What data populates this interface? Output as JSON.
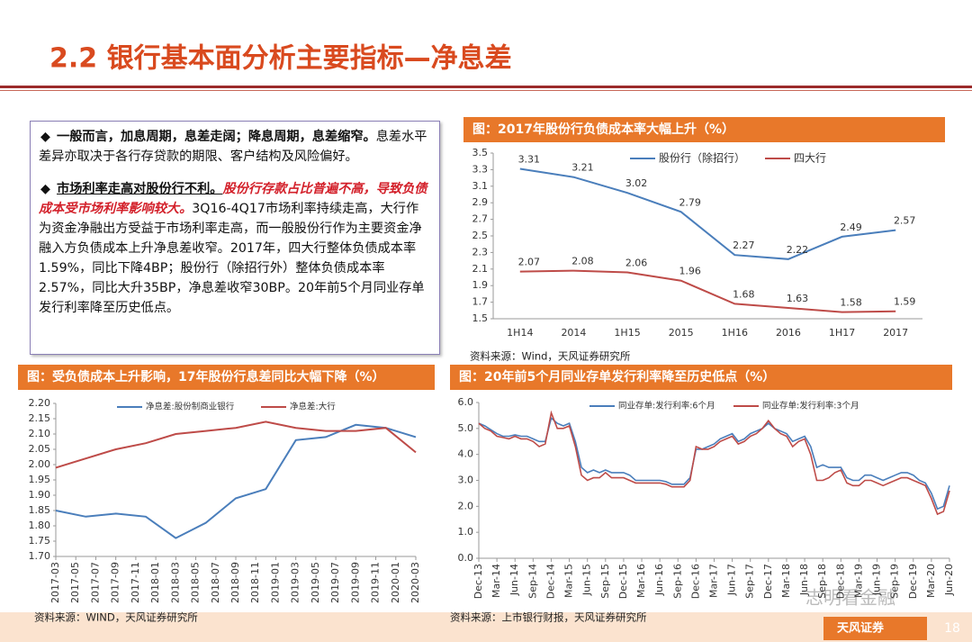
{
  "header": {
    "title": "2.2 银行基本面分析主要指标—净息差"
  },
  "text": {
    "bullets": [
      {
        "bold": "一般而言，加息周期，息差走阔；降息周期，息差缩窄。",
        "normal": "息差水平差异亦取决于各行存贷款的期限、客户结构及风险偏好。"
      },
      {
        "bold": "市场利率走高对股份行不利。",
        "emphasis": "股份行存款占比普遍不高，导致负债成本受市场利率影响较大。",
        "normal": "3Q16-4Q17市场利率持续走高，大行作为资金净融出方受益于市场利率走高，而一般股份行作为主要资金净融入方负债成本上升净息差收窄。2017年，四大行整体负债成本率1.59%，同比下降4BP；股份行（除招行外）整体负债成本率2.57%，同比大升35BP，净息差收窄30BP。20年前5个月同业存单发行利率降至历史低点。"
      }
    ]
  },
  "chart_data": [
    {
      "type": "line",
      "title": "图：2017年股份行负债成本率大幅上升（%）",
      "source": "资料来源：Wind，天风证券研究所",
      "categories": [
        "1H14",
        "2014",
        "1H15",
        "2015",
        "1H16",
        "2016",
        "1H17",
        "2017"
      ],
      "series": [
        {
          "name": "股份行（除招行）",
          "color": "#4a7ebb",
          "values": [
            3.31,
            3.21,
            3.02,
            2.79,
            2.27,
            2.22,
            2.49,
            2.57
          ]
        },
        {
          "name": "四大行",
          "color": "#be4b48",
          "values": [
            2.07,
            2.08,
            2.06,
            1.96,
            1.68,
            1.63,
            1.58,
            1.59
          ]
        }
      ],
      "ylim": [
        1.5,
        3.5
      ],
      "yticks": [
        1.5,
        1.7,
        1.9,
        2.1,
        2.3,
        2.5,
        2.7,
        2.9,
        3.1,
        3.3,
        3.5
      ],
      "grid": false,
      "legend": "top",
      "data_labels": true
    },
    {
      "type": "line",
      "title": "图：受负债成本上升影响，17年股份行息差同比大幅下降（%）",
      "source": "资料来源：WIND，天风证券研究所",
      "x": [
        "2017-03",
        "2017-06",
        "2017-09",
        "2017-12",
        "2018-03",
        "2018-06",
        "2018-09",
        "2018-12",
        "2019-03",
        "2019-06",
        "2019-09",
        "2019-12",
        "2020-03"
      ],
      "xticks": [
        "2017-03",
        "2017-05",
        "2017-07",
        "2017-09",
        "2017-11",
        "2018-01",
        "2018-03",
        "2018-05",
        "2018-07",
        "2018-09",
        "2018-11",
        "2019-01",
        "2019-03",
        "2019-05",
        "2019-07",
        "2019-09",
        "2019-11",
        "2020-01",
        "2020-03"
      ],
      "series": [
        {
          "name": "净息差:股份制商业银行",
          "color": "#4a7ebb",
          "values": [
            1.85,
            1.83,
            1.84,
            1.83,
            1.76,
            1.81,
            1.89,
            1.92,
            2.08,
            2.09,
            2.13,
            2.12,
            2.09
          ]
        },
        {
          "name": "净息差:大行",
          "color": "#be4b48",
          "values": [
            1.99,
            2.02,
            2.05,
            2.07,
            2.1,
            2.11,
            2.12,
            2.14,
            2.12,
            2.11,
            2.11,
            2.12,
            2.04
          ]
        }
      ],
      "ylim": [
        1.7,
        2.2
      ],
      "yticks": [
        {
          "value": 1.7,
          "label": "1.70"
        },
        1.75,
        {
          "value": 1.8,
          "label": "1.80"
        },
        1.85,
        {
          "value": 1.9,
          "label": "1.90"
        },
        1.95,
        {
          "value": 2,
          "label": "2.00"
        },
        2.05,
        {
          "value": 2.1,
          "label": "2.10"
        },
        2.15,
        {
          "value": 2.2,
          "label": "2.20"
        }
      ],
      "grid": false,
      "legend": "top"
    },
    {
      "type": "line",
      "title": "图：20年前5个月同业存单发行利率降至历史低点（%）",
      "source": "资料来源：上市银行财报，天风证券研究所",
      "categories": [
        "Dec-13",
        null,
        null,
        "Mar-14",
        null,
        null,
        "Jun-14",
        null,
        null,
        "Sep-14",
        null,
        null,
        "Dec-14",
        null,
        null,
        "Mar-15",
        null,
        null,
        "Jun-15",
        null,
        null,
        "Sep-15",
        null,
        null,
        "Dec-15",
        null,
        null,
        "Mar-16",
        null,
        null,
        "Jun-16",
        null,
        null,
        "Sep-16",
        null,
        null,
        "Dec-16",
        null,
        null,
        "Mar-17",
        null,
        null,
        "Jun-17",
        null,
        null,
        "Sep-17",
        null,
        null,
        "Dec-17",
        null,
        null,
        "Mar-18",
        null,
        null,
        "Jun-18",
        null,
        null,
        "Sep-18",
        null,
        null,
        "Dec-18",
        null,
        null,
        "Mar-19",
        null,
        null,
        "Jun-19",
        null,
        null,
        "Sep-19",
        null,
        null,
        "Dec-19",
        null,
        null,
        "Mar-20",
        null,
        null,
        "Jun-20"
      ],
      "series": [
        {
          "name": "同业存单:发行利率:6个月",
          "color": "#4a7ebb",
          "values": [
            5.2,
            5.1,
            4.95,
            4.8,
            4.7,
            4.7,
            4.75,
            4.7,
            4.7,
            4.6,
            4.5,
            4.5,
            5.4,
            5.2,
            5.1,
            5.2,
            4.5,
            3.5,
            3.3,
            3.4,
            3.3,
            3.4,
            3.3,
            3.3,
            3.3,
            3.2,
            3.0,
            3.0,
            3.0,
            3.0,
            3.0,
            2.95,
            2.85,
            2.85,
            2.85,
            3.1,
            4.2,
            4.2,
            4.3,
            4.4,
            4.6,
            4.7,
            4.8,
            4.5,
            4.6,
            4.8,
            4.9,
            5.0,
            5.2,
            5.0,
            4.9,
            4.8,
            4.5,
            4.6,
            4.7,
            4.3,
            3.5,
            3.6,
            3.5,
            3.5,
            3.5,
            3.1,
            3.0,
            3.0,
            3.2,
            3.2,
            3.1,
            3.0,
            3.1,
            3.2,
            3.3,
            3.3,
            3.2,
            3.0,
            2.9,
            2.5,
            1.9,
            2.0,
            2.8
          ]
        },
        {
          "name": "同业存单:发行利率:3个月",
          "color": "#be4b48",
          "values": [
            5.2,
            5.0,
            4.9,
            4.7,
            4.65,
            4.6,
            4.7,
            4.6,
            4.6,
            4.5,
            4.3,
            4.4,
            5.6,
            5.0,
            5.0,
            5.1,
            4.3,
            3.2,
            3.0,
            3.1,
            3.1,
            3.3,
            3.1,
            3.1,
            3.1,
            3.0,
            2.9,
            2.9,
            2.9,
            2.9,
            2.9,
            2.85,
            2.75,
            2.75,
            2.75,
            3.0,
            4.3,
            4.2,
            4.2,
            4.3,
            4.5,
            4.6,
            4.7,
            4.4,
            4.5,
            4.7,
            4.8,
            5.0,
            5.3,
            5.0,
            4.8,
            4.7,
            4.3,
            4.5,
            4.6,
            4.0,
            3.0,
            3.0,
            3.1,
            3.3,
            3.4,
            2.9,
            2.8,
            2.8,
            3.0,
            3.0,
            2.9,
            2.8,
            2.9,
            3.0,
            3.1,
            3.1,
            3.0,
            2.9,
            2.8,
            2.3,
            1.7,
            1.8,
            2.6
          ]
        }
      ],
      "ylim": [
        0,
        6
      ],
      "yticks": [
        {
          "value": 0,
          "label": "0.0"
        },
        {
          "value": 1,
          "label": "1.0"
        },
        {
          "value": 2,
          "label": "2.0"
        },
        {
          "value": 3,
          "label": "3.0"
        },
        {
          "value": 4,
          "label": "4.0"
        },
        {
          "value": 5,
          "label": "5.0"
        },
        {
          "value": 6,
          "label": "6.0"
        }
      ],
      "grid": false,
      "legend": "top"
    }
  ],
  "footer": {
    "watermark": "志明看金融",
    "logo": "天风证券",
    "page": "18"
  }
}
